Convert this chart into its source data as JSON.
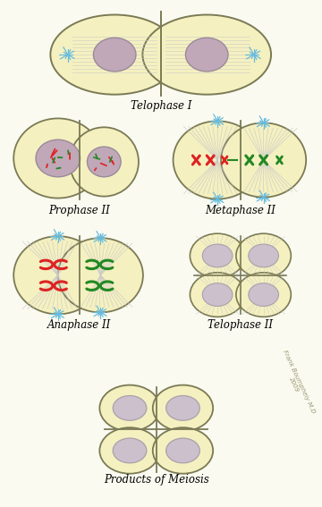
{
  "background_color": "#fafaf0",
  "cell_fill": "#f5f0c0",
  "cell_edge": "#7a7a55",
  "nucleus_fill": "#c0a8b8",
  "nucleus_edge": "#9a8a9a",
  "spindle_color": "#c8c8c8",
  "aster_color": "#66bbdd",
  "chr_red": "#dd2222",
  "chr_green": "#228822",
  "label_fontsize": 8.5,
  "labels": [
    "Telophase I",
    "Prophase II",
    "Metaphase II",
    "Anaphase II",
    "Telophase II",
    "Products of Meiosis"
  ],
  "watermark": "Frank Boumpheiy M.D\n2009"
}
